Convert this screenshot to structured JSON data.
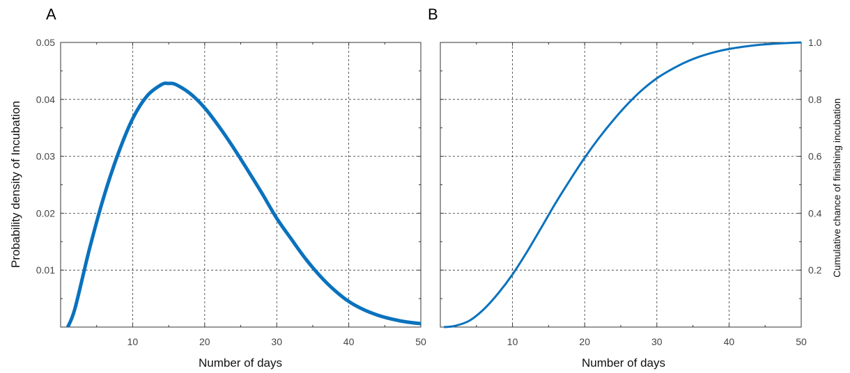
{
  "chart_data": [
    {
      "panel": "A",
      "type": "line",
      "xlabel": "Number of days",
      "ylabel": "Probability density of Incubation",
      "xlim": [
        0,
        50
      ],
      "ylim": [
        0,
        0.05
      ],
      "xticks": [
        10,
        20,
        30,
        40,
        50
      ],
      "yticks": [
        0.01,
        0.02,
        0.03,
        0.04,
        0.05
      ],
      "ytick_labels": [
        "0.01",
        "0.02",
        "0.03",
        "0.04",
        "0.05"
      ],
      "grid": true,
      "line_color": "#0a72bd",
      "x": [
        1,
        2,
        4,
        6,
        8,
        10,
        12,
        14,
        15,
        16,
        18,
        20,
        22,
        24,
        26,
        28,
        30,
        32,
        34,
        36,
        38,
        40,
        42,
        44,
        46,
        48,
        50
      ],
      "values": [
        0.0,
        0.0033,
        0.0137,
        0.0229,
        0.0305,
        0.0366,
        0.0406,
        0.0426,
        0.0428,
        0.0426,
        0.041,
        0.0385,
        0.0352,
        0.0315,
        0.0275,
        0.0234,
        0.0191,
        0.0155,
        0.012,
        0.009,
        0.0065,
        0.0045,
        0.0031,
        0.0021,
        0.0014,
        0.0009,
        0.0006
      ]
    },
    {
      "panel": "B",
      "type": "line",
      "xlabel": "Number of days",
      "ylabel": "Cumulative chance of finishing incubation",
      "xlim": [
        0,
        50
      ],
      "ylim": [
        0,
        1.0
      ],
      "xticks": [
        10,
        20,
        30,
        40,
        50
      ],
      "yticks": [
        0.2,
        0.4,
        0.6,
        0.8,
        1.0
      ],
      "ytick_labels": [
        "0.2",
        "0.4",
        "0.6",
        "0.8",
        "1.0"
      ],
      "grid": true,
      "line_color": "#0a72bd",
      "x": [
        0.5,
        2,
        4,
        6,
        8,
        10,
        12,
        14,
        16,
        18,
        20,
        22,
        24,
        26,
        28,
        30,
        32,
        34,
        36,
        38,
        40,
        42,
        44,
        46,
        48,
        50
      ],
      "values": [
        0.0,
        0.004,
        0.022,
        0.062,
        0.118,
        0.185,
        0.264,
        0.35,
        0.437,
        0.518,
        0.595,
        0.665,
        0.728,
        0.785,
        0.834,
        0.874,
        0.905,
        0.931,
        0.951,
        0.966,
        0.977,
        0.985,
        0.991,
        0.995,
        0.998,
        1.0
      ]
    }
  ]
}
